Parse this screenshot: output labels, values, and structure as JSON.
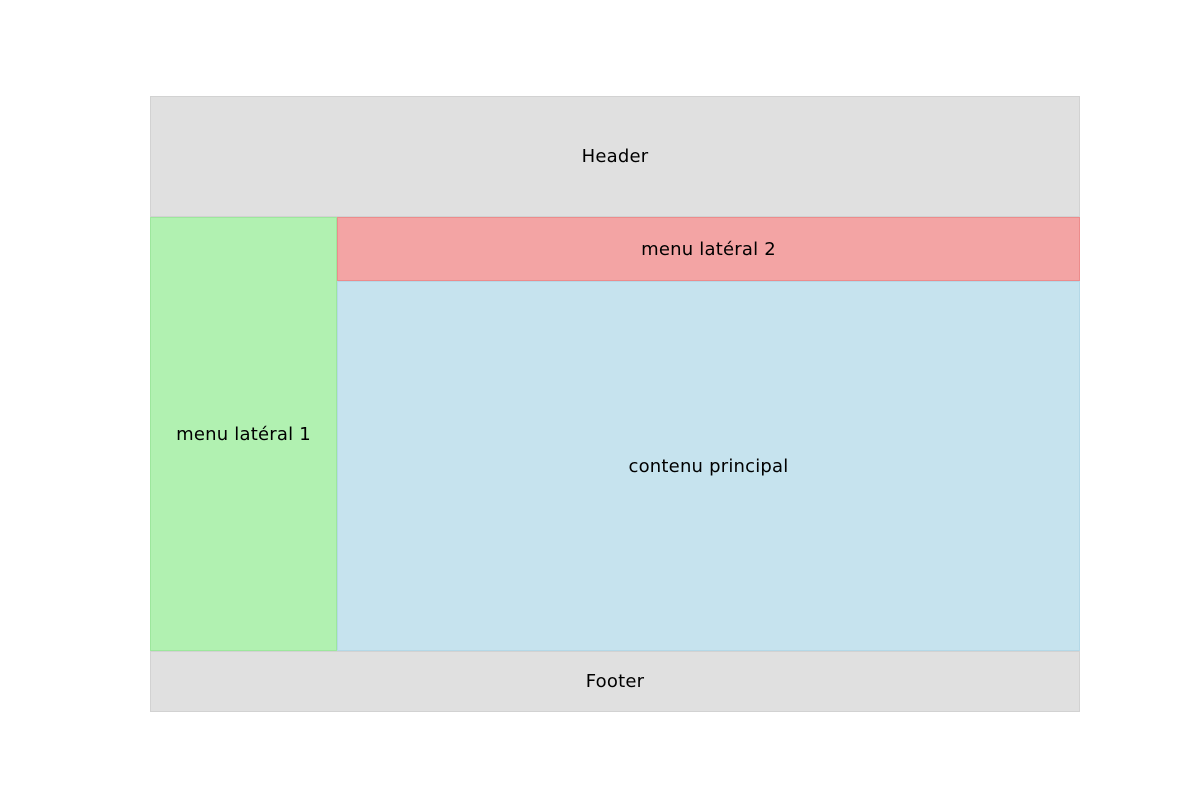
{
  "diagram": {
    "description": "webpage layout diagram",
    "background": "#ffffff",
    "text_color": "#000000",
    "blocks": {
      "header": {
        "label": "Header",
        "bg": "#e0e0e0",
        "border": "#d2d2d2"
      },
      "sidebar_menu_1": {
        "label": "menu latéral 1",
        "bg": "#b1f1b1",
        "border": "#9de79d"
      },
      "sidebar_menu_2": {
        "label": "menu latéral 2",
        "bg": "#f3a4a4",
        "border": "#ec8c8c"
      },
      "main_content": {
        "label": "contenu principal",
        "bg": "#c6e3ee",
        "border": "#b4d8e7"
      },
      "footer": {
        "label": "Footer",
        "bg": "#e0e0e0",
        "border": "#d2d2d2"
      }
    }
  }
}
